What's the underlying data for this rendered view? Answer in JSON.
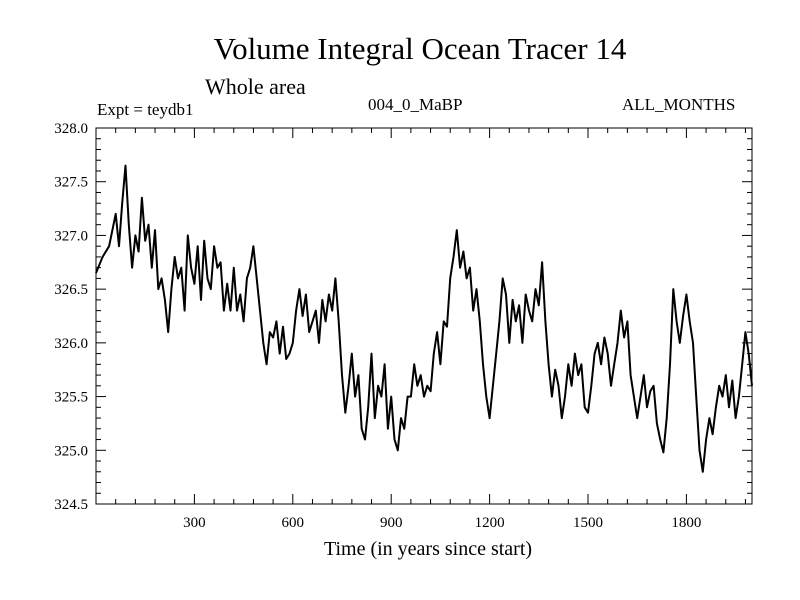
{
  "header": {
    "title": "Volume Integral Ocean Tracer 14",
    "subtitle": "Whole area",
    "left_label": "Expt = teydb1",
    "center_label": "004_0_MaBP",
    "right_label": "ALL_MONTHS"
  },
  "chart_data": {
    "type": "line",
    "title": "Volume Integral Ocean Tracer 14",
    "subtitle": "Whole area",
    "xlabel": "Time (in years since start)",
    "ylabel": "",
    "xlim": [
      0,
      2000
    ],
    "ylim": [
      324.5,
      328.0
    ],
    "xticks": [
      300,
      600,
      900,
      1200,
      1500,
      1800
    ],
    "xtick_labels": [
      "300",
      "600",
      "900",
      "1200",
      "1500",
      "1800"
    ],
    "yticks": [
      324.5,
      325.0,
      325.5,
      326.0,
      326.5,
      327.0,
      327.5,
      328.0
    ],
    "ytick_labels": [
      "324.5",
      "325.0",
      "325.5",
      "326.0",
      "326.5",
      "327.0",
      "327.5",
      "328.0"
    ],
    "grid": false,
    "series": [
      {
        "name": "Volume Integral Ocean Tracer 14",
        "x": [
          0,
          20,
          40,
          60,
          70,
          80,
          90,
          100,
          110,
          120,
          130,
          140,
          150,
          160,
          170,
          180,
          190,
          200,
          210,
          220,
          230,
          240,
          250,
          260,
          270,
          280,
          290,
          300,
          310,
          320,
          330,
          340,
          350,
          360,
          370,
          380,
          390,
          400,
          410,
          420,
          430,
          440,
          450,
          460,
          470,
          480,
          490,
          500,
          510,
          520,
          530,
          540,
          550,
          560,
          570,
          580,
          590,
          600,
          610,
          620,
          630,
          640,
          650,
          660,
          670,
          680,
          690,
          700,
          710,
          720,
          730,
          740,
          750,
          760,
          770,
          780,
          790,
          800,
          810,
          820,
          830,
          840,
          850,
          860,
          870,
          880,
          890,
          900,
          910,
          920,
          930,
          940,
          950,
          960,
          970,
          980,
          990,
          1000,
          1010,
          1020,
          1030,
          1040,
          1050,
          1060,
          1070,
          1080,
          1090,
          1100,
          1110,
          1120,
          1130,
          1140,
          1150,
          1160,
          1170,
          1180,
          1190,
          1200,
          1210,
          1220,
          1230,
          1240,
          1250,
          1260,
          1270,
          1280,
          1290,
          1300,
          1310,
          1320,
          1330,
          1340,
          1350,
          1360,
          1370,
          1380,
          1390,
          1400,
          1410,
          1420,
          1430,
          1440,
          1450,
          1460,
          1470,
          1480,
          1490,
          1500,
          1510,
          1520,
          1530,
          1540,
          1550,
          1560,
          1570,
          1580,
          1590,
          1600,
          1610,
          1620,
          1630,
          1640,
          1650,
          1660,
          1670,
          1680,
          1690,
          1700,
          1710,
          1720,
          1730,
          1740,
          1750,
          1760,
          1770,
          1780,
          1790,
          1800,
          1810,
          1820,
          1830,
          1840,
          1850,
          1860,
          1870,
          1880,
          1890,
          1900,
          1910,
          1920,
          1930,
          1940,
          1950,
          1960,
          1970,
          1980,
          1990,
          2000
        ],
        "y": [
          326.65,
          326.8,
          326.9,
          327.2,
          326.9,
          327.3,
          327.65,
          327.1,
          326.7,
          327.0,
          326.85,
          327.35,
          326.95,
          327.1,
          326.7,
          327.05,
          326.5,
          326.6,
          326.4,
          326.1,
          326.5,
          326.8,
          326.6,
          326.7,
          326.3,
          327.0,
          326.7,
          326.55,
          326.9,
          326.4,
          326.95,
          326.6,
          326.5,
          326.9,
          326.7,
          326.75,
          326.3,
          326.55,
          326.3,
          326.7,
          326.3,
          326.45,
          326.2,
          326.6,
          326.7,
          326.9,
          326.6,
          326.3,
          326.0,
          325.8,
          326.1,
          326.05,
          326.2,
          325.9,
          326.15,
          325.85,
          325.9,
          326.0,
          326.3,
          326.5,
          326.25,
          326.45,
          326.1,
          326.2,
          326.3,
          326.0,
          326.4,
          326.2,
          326.45,
          326.3,
          326.6,
          326.2,
          325.7,
          325.35,
          325.6,
          325.9,
          325.5,
          325.7,
          325.2,
          325.1,
          325.4,
          325.9,
          325.3,
          325.6,
          325.5,
          325.8,
          325.2,
          325.5,
          325.1,
          325.0,
          325.3,
          325.2,
          325.5,
          325.5,
          325.8,
          325.6,
          325.7,
          325.5,
          325.6,
          325.55,
          325.9,
          326.1,
          325.8,
          326.2,
          326.15,
          326.6,
          326.8,
          327.05,
          326.7,
          326.85,
          326.6,
          326.7,
          326.3,
          326.5,
          326.2,
          325.8,
          325.5,
          325.3,
          325.6,
          325.9,
          326.2,
          326.6,
          326.45,
          326.0,
          326.4,
          326.2,
          326.35,
          326.0,
          326.45,
          326.3,
          326.2,
          326.5,
          326.35,
          326.75,
          326.2,
          325.8,
          325.5,
          325.75,
          325.6,
          325.3,
          325.5,
          325.8,
          325.6,
          325.9,
          325.7,
          325.8,
          325.4,
          325.35,
          325.6,
          325.9,
          326.0,
          325.8,
          326.05,
          325.9,
          325.6,
          325.8,
          326.0,
          326.3,
          326.05,
          326.2,
          325.7,
          325.5,
          325.3,
          325.5,
          325.7,
          325.4,
          325.55,
          325.6,
          325.25,
          325.1,
          324.98,
          325.3,
          325.8,
          326.5,
          326.2,
          326.0,
          326.25,
          326.45,
          326.2,
          326.0,
          325.5,
          325.0,
          324.8,
          325.1,
          325.3,
          325.15,
          325.4,
          325.6,
          325.5,
          325.7,
          325.4,
          325.65,
          325.3,
          325.5,
          325.8,
          326.1,
          325.9,
          325.6
        ]
      }
    ]
  }
}
